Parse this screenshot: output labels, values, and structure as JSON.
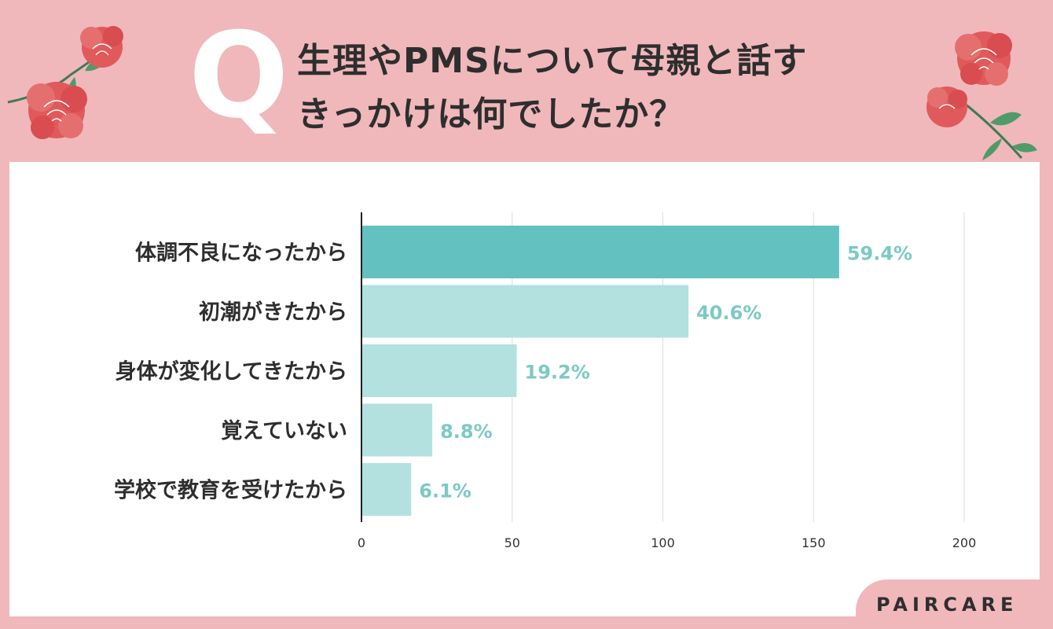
{
  "header": {
    "q_letter": "Q",
    "title_line1": "生理やPMSについて母親と話す",
    "title_line2": "きっかけは何でしたか？"
  },
  "chart_data": {
    "type": "bar",
    "orientation": "horizontal",
    "categories": [
      "体調不良になったから",
      "初潮がきたから",
      "身体が変化してきたから",
      "覚えていない",
      "学校で教育を受けたから"
    ],
    "values": [
      158.5,
      108.5,
      51.5,
      23.5,
      16.5
    ],
    "value_labels": [
      "59.4%",
      "40.6%",
      "19.2%",
      "8.8%",
      "6.1%"
    ],
    "xlim": [
      0,
      200
    ],
    "x_ticks": [
      0,
      50,
      100,
      150,
      200
    ],
    "grid": true,
    "colors": {
      "highlight": "#63c1c0",
      "normal": "#b2e1e0",
      "value_label": "#7ccac4",
      "grid": "#dcdcdc",
      "category_text": "#2e2e2e",
      "tick_text": "#333333"
    }
  },
  "brand": {
    "name": "PAIRCARE"
  },
  "colors": {
    "background": "#f0b8bb",
    "panel": "#ffffff"
  }
}
